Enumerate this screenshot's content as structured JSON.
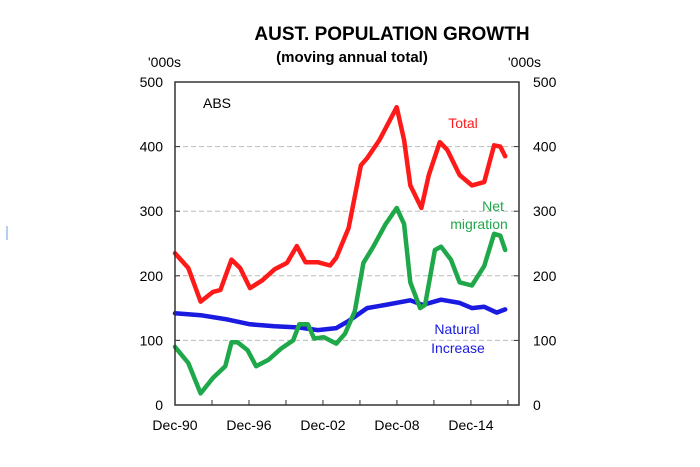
{
  "chart_data": {
    "type": "line",
    "title": "AUST. POPULATION GROWTH",
    "subtitle": "(moving annual total)",
    "ylabel_left": "'000s",
    "ylabel_right": "'000s",
    "source": "ABS",
    "ylim": [
      0,
      500
    ],
    "yticks": [
      "0",
      "100",
      "200",
      "300",
      "400",
      "500"
    ],
    "yticks_right": [
      "0",
      "100",
      "200",
      "300",
      "400",
      "500"
    ],
    "xlim": [
      1990.92,
      2018.3
    ],
    "xticks": [
      {
        "label": "Dec-90",
        "x": 1990.92
      },
      {
        "label": "Dec-96",
        "x": 1996.92
      },
      {
        "label": "Dec-02",
        "x": 2002.92
      },
      {
        "label": "Dec-08",
        "x": 2008.92
      },
      {
        "label": "Dec-14",
        "x": 2014.92
      }
    ],
    "grid": true,
    "series": [
      {
        "name": "Total",
        "label_lines": [
          "Total"
        ],
        "color": "#ff1a1a",
        "x": [
          1990.92,
          1992,
          1993,
          1994,
          1994.6,
          1995.5,
          1996.2,
          1997,
          1998,
          1999,
          2000,
          2000.8,
          2001.5,
          2002.5,
          2003.5,
          2004,
          2005,
          2006,
          2006.5,
          2007.5,
          2008.9,
          2009.5,
          2010,
          2010.9,
          2011.5,
          2012.4,
          2013,
          2014,
          2015,
          2016,
          2016.8,
          2017.3,
          2017.7
        ],
        "y": [
          235,
          212,
          160,
          175,
          178,
          225,
          212,
          181,
          193,
          210,
          220,
          246,
          221,
          221,
          216,
          228,
          274,
          371,
          382,
          410,
          461,
          410,
          340,
          305,
          356,
          407,
          395,
          356,
          340,
          345,
          402,
          400,
          385
        ]
      },
      {
        "name": "Net migration",
        "label_lines": [
          "Net",
          "migration"
        ],
        "color": "#1fa84a",
        "x": [
          1990.92,
          1992,
          1993,
          1994,
          1995,
          1995.5,
          1996,
          1996.8,
          1997.5,
          1998.5,
          1999.5,
          2000.5,
          2001,
          2001.7,
          2002.2,
          2003,
          2004,
          2004.7,
          2005.5,
          2006.2,
          2007,
          2008,
          2008.9,
          2009.5,
          2010,
          2010.8,
          2011.2,
          2012,
          2012.5,
          2013.3,
          2014,
          2015,
          2016,
          2016.8,
          2017.3,
          2017.7
        ],
        "y": [
          90,
          65,
          18,
          42,
          60,
          97,
          97,
          85,
          60,
          70,
          87,
          100,
          125,
          125,
          103,
          105,
          95,
          110,
          145,
          220,
          245,
          280,
          305,
          280,
          190,
          150,
          155,
          240,
          245,
          225,
          190,
          185,
          215,
          265,
          262,
          240
        ]
      },
      {
        "name": "Natural Increase",
        "label_lines": [
          "Natural",
          "Increase"
        ],
        "color": "#1a1ae0",
        "x": [
          1990.92,
          1993,
          1995,
          1997,
          1999,
          2001,
          2002.5,
          2004,
          2005,
          2006.5,
          2008,
          2010,
          2011,
          2012.5,
          2014,
          2015,
          2016,
          2017,
          2017.7
        ],
        "y": [
          142,
          139,
          133,
          125,
          122,
          120,
          116,
          119,
          130,
          150,
          155,
          162,
          155,
          163,
          158,
          150,
          152,
          143,
          148
        ]
      }
    ]
  }
}
